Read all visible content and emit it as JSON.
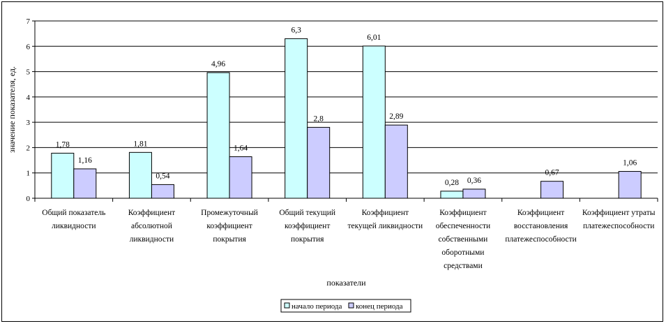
{
  "chart_data": {
    "type": "bar",
    "title": "",
    "xlabel": "показатели",
    "ylabel": "значение показателя, ед.",
    "ylim": [
      0,
      7
    ],
    "yticks": [
      "0",
      "1",
      "2",
      "3",
      "4",
      "5",
      "6",
      "7"
    ],
    "grid": true,
    "legend_position": "bottom",
    "categories": [
      [
        "Общий показатель",
        "ликвидности"
      ],
      [
        "Коэффициент",
        "абсолютной",
        "ликвидности"
      ],
      [
        "Промежуточный",
        "коэффициент",
        "покрытия"
      ],
      [
        "Общий текущий",
        "коэффициент",
        "покрытия"
      ],
      [
        "Коэффициент",
        "текущей ликвидности"
      ],
      [
        "Коэффициент",
        "обеспеченности",
        "собственными",
        "оборотными",
        "средствами"
      ],
      [
        "Коэффициент",
        "восстановления",
        "платежеспособности"
      ],
      [
        "Коэффициент утраты",
        "платежеспособности"
      ]
    ],
    "series": [
      {
        "name": "начало периода",
        "color": "#ccffff",
        "values": [
          1.78,
          1.81,
          4.96,
          6.3,
          6.01,
          0.28,
          null,
          null
        ],
        "labels": [
          "1,78",
          "1,81",
          "4,96",
          "6,3",
          "6,01",
          "0,28",
          null,
          null
        ]
      },
      {
        "name": "конец периода",
        "color": "#ccccff",
        "values": [
          1.16,
          0.54,
          1.64,
          2.8,
          2.89,
          0.36,
          0.67,
          1.06
        ],
        "labels": [
          "1,16",
          "0,54",
          "1,64",
          "2,8",
          "2,89",
          "0,36",
          "0,67",
          "1,06"
        ]
      }
    ]
  }
}
